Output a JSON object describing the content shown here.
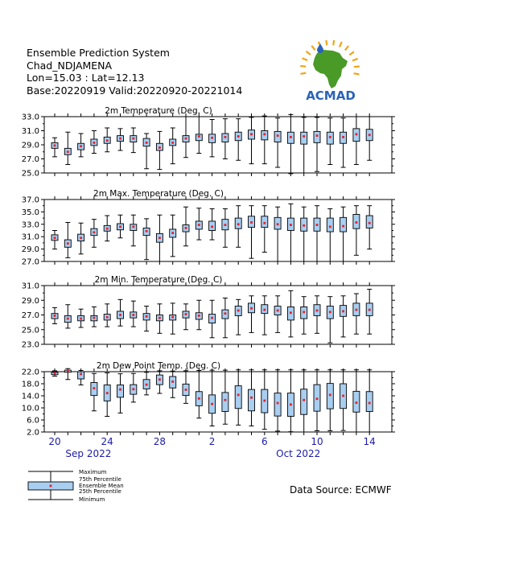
{
  "header": {
    "line1": "Ensemble Prediction System",
    "line2": "Chad_NDJAMENA",
    "line3": "Lon=15.03 : Lat=12.13",
    "line4": "Base:20220919 Valid:20220920-20221014"
  },
  "logo": {
    "text": "ACMAD",
    "colors": {
      "africa": "#4a9a28",
      "blue": "#2a63b8",
      "rays": "#f0a418"
    }
  },
  "source": "Data Source: ECMWF",
  "legend": {
    "maximum": "Maximum",
    "p75": "75th Percentile",
    "mean": "Ensemble Mean",
    "p25": "25th Percentile",
    "minimum": "Minimum"
  },
  "x_axis": {
    "tick_labels": [
      {
        "day": 1,
        "label": "20"
      },
      {
        "day": 5,
        "label": "24"
      },
      {
        "day": 9,
        "label": "28"
      },
      {
        "day": 13,
        "label": "2"
      },
      {
        "day": 17,
        "label": "6"
      },
      {
        "day": 21,
        "label": "10"
      },
      {
        "day": 25,
        "label": "14"
      }
    ],
    "months": [
      {
        "day": 4,
        "label": "Sep 2022"
      },
      {
        "day": 20,
        "label": "Oct 2022"
      }
    ]
  },
  "colors": {
    "box": "#a8cef0",
    "mean": "#e8202a",
    "axis_text": "#1c1caa"
  },
  "chart_data": [
    {
      "type": "boxplot",
      "title": "2m Temperature (Deg. C)",
      "ylim": [
        25,
        33
      ],
      "yticks": [
        25,
        27,
        29,
        31,
        33
      ],
      "min": [
        27.3,
        26.2,
        27.3,
        27.8,
        28.0,
        28.2,
        27.9,
        25.6,
        25.5,
        26.3,
        27.2,
        27.8,
        27.3,
        27.0,
        26.8,
        26.3,
        26.3,
        25.8,
        24.9,
        25.0,
        25.2,
        26.2,
        25.8,
        26.2,
        26.8
      ],
      "p25": [
        28.5,
        27.6,
        28.3,
        28.9,
        29.2,
        29.5,
        29.4,
        28.8,
        28.2,
        28.9,
        29.4,
        29.6,
        29.3,
        29.4,
        29.6,
        29.8,
        29.7,
        29.4,
        29.2,
        29.1,
        29.3,
        29.1,
        29.2,
        29.5,
        29.6
      ],
      "mean": [
        28.9,
        28.0,
        28.8,
        29.3,
        29.6,
        29.9,
        29.9,
        29.3,
        28.6,
        29.3,
        29.9,
        30.2,
        30.0,
        30.1,
        30.2,
        30.5,
        30.5,
        30.3,
        30.1,
        30.2,
        30.3,
        30.1,
        30.1,
        30.5,
        30.4
      ],
      "p75": [
        29.3,
        28.5,
        29.2,
        29.8,
        30.1,
        30.3,
        30.3,
        29.9,
        29.2,
        29.8,
        30.3,
        30.5,
        30.5,
        30.6,
        30.8,
        31.1,
        31.0,
        30.9,
        30.8,
        30.8,
        30.9,
        30.8,
        30.8,
        31.3,
        31.2
      ],
      "max": [
        30.0,
        30.8,
        30.6,
        31.0,
        31.4,
        31.3,
        31.4,
        30.6,
        30.9,
        31.4,
        33.0,
        33.0,
        32.6,
        32.7,
        32.7,
        32.9,
        33.1,
        32.8,
        33.3,
        32.9,
        32.9,
        32.8,
        32.8,
        33.0,
        33.0
      ]
    },
    {
      "type": "boxplot",
      "title": "2m Max. Temperature (Deg. C)",
      "ylim": [
        27,
        37
      ],
      "yticks": [
        27,
        29,
        31,
        33,
        35,
        37
      ],
      "min": [
        29.0,
        27.6,
        28.2,
        29.3,
        30.3,
        30.8,
        29.5,
        27.3,
        27.0,
        27.8,
        29.5,
        30.5,
        30.5,
        29.3,
        29.3,
        27.5,
        28.5,
        27.0,
        27.0,
        27.0,
        27.0,
        27.0,
        27.0,
        28.0,
        29.0
      ],
      "p25": [
        30.4,
        29.3,
        30.3,
        31.2,
        31.9,
        32.1,
        32.0,
        31.2,
        30.1,
        30.9,
        31.8,
        32.2,
        32.0,
        32.1,
        32.3,
        32.5,
        32.5,
        32.2,
        32.0,
        31.9,
        31.9,
        31.8,
        31.8,
        32.3,
        32.4
      ],
      "mean": [
        30.8,
        29.9,
        30.8,
        31.7,
        32.3,
        32.6,
        32.6,
        31.9,
        30.8,
        31.6,
        32.4,
        32.9,
        32.6,
        32.9,
        33.0,
        33.3,
        33.2,
        33.0,
        32.9,
        32.8,
        32.9,
        32.6,
        32.7,
        33.3,
        33.2
      ],
      "p75": [
        31.3,
        30.5,
        31.4,
        32.3,
        32.8,
        33.1,
        33.0,
        32.4,
        31.5,
        32.2,
        32.9,
        33.5,
        33.5,
        33.8,
        34.0,
        34.3,
        34.3,
        34.1,
        34.0,
        34.0,
        34.0,
        34.0,
        34.1,
        34.6,
        34.4
      ],
      "max": [
        32.0,
        33.3,
        33.2,
        33.8,
        34.4,
        34.5,
        34.5,
        33.9,
        34.5,
        34.5,
        35.8,
        35.6,
        35.5,
        35.5,
        36.0,
        36.0,
        36.0,
        35.8,
        36.3,
        35.8,
        36.0,
        35.5,
        35.8,
        36.0,
        36.0
      ]
    },
    {
      "type": "boxplot",
      "title": "2m Min. Temperature (Deg. C)",
      "ylim": [
        23,
        31
      ],
      "yticks": [
        23,
        25,
        27,
        29,
        31
      ],
      "min": [
        25.8,
        25.2,
        25.3,
        25.4,
        25.4,
        25.5,
        25.4,
        24.8,
        24.5,
        24.4,
        25.0,
        25.0,
        23.9,
        23.9,
        24.3,
        24.6,
        24.3,
        24.6,
        24.0,
        24.4,
        24.5,
        23.2,
        24.0,
        24.4,
        24.4
      ],
      "p25": [
        26.5,
        26.0,
        26.2,
        26.2,
        26.3,
        26.5,
        26.6,
        26.3,
        26.2,
        26.3,
        26.6,
        26.4,
        25.9,
        26.5,
        26.9,
        27.3,
        27.2,
        27.0,
        26.3,
        26.5,
        26.9,
        26.5,
        26.8,
        26.9,
        26.9
      ],
      "mean": [
        26.9,
        26.5,
        26.5,
        26.6,
        26.7,
        27.0,
        27.0,
        26.8,
        26.6,
        26.7,
        27.1,
        26.9,
        26.6,
        27.2,
        27.6,
        27.9,
        27.7,
        27.6,
        27.3,
        27.4,
        27.6,
        27.4,
        27.5,
        27.7,
        27.7
      ],
      "p75": [
        27.2,
        26.9,
        26.9,
        26.9,
        27.1,
        27.5,
        27.4,
        27.2,
        27.0,
        27.0,
        27.5,
        27.3,
        27.1,
        27.7,
        28.2,
        28.6,
        28.4,
        28.2,
        28.1,
        28.1,
        28.4,
        28.2,
        28.3,
        28.6,
        28.6
      ],
      "max": [
        28.0,
        28.4,
        27.8,
        28.1,
        28.5,
        29.1,
        28.9,
        28.2,
        28.5,
        28.6,
        28.5,
        29.0,
        29.0,
        29.3,
        29.1,
        29.6,
        29.6,
        29.6,
        30.3,
        29.5,
        29.6,
        29.5,
        29.6,
        29.9,
        30.5
      ]
    },
    {
      "type": "boxplot",
      "title": "2m Dew Point Temp. (Deg. C)",
      "ylim": [
        2,
        22
      ],
      "yticks": [
        2,
        6,
        10,
        14,
        18,
        22
      ],
      "min": [
        20.5,
        19.4,
        17.6,
        9.0,
        7.2,
        8.3,
        11.9,
        14.3,
        14.8,
        13.4,
        11.5,
        6.6,
        4.0,
        4.6,
        4.3,
        4.0,
        2.9,
        2.3,
        2.1,
        2.0,
        2.4,
        2.4,
        2.5,
        2.0,
        2.0
      ],
      "p25": [
        21.0,
        21.8,
        19.6,
        14.1,
        12.3,
        13.5,
        14.5,
        16.3,
        17.7,
        16.6,
        14.1,
        10.7,
        8.2,
        8.8,
        9.8,
        9.0,
        8.4,
        7.3,
        7.2,
        7.8,
        8.9,
        9.7,
        9.8,
        8.6,
        8.8
      ],
      "mean": [
        21.5,
        22.3,
        21.2,
        16.5,
        14.9,
        16.1,
        16.2,
        17.7,
        19.4,
        18.7,
        16.0,
        13.1,
        11.3,
        12.6,
        14.3,
        13.4,
        12.4,
        11.6,
        11.1,
        12.6,
        13.0,
        14.3,
        14.0,
        11.7,
        11.6
      ],
      "p75": [
        21.8,
        22.5,
        22.0,
        18.4,
        17.6,
        17.6,
        17.7,
        19.4,
        20.9,
        20.4,
        17.9,
        15.4,
        14.3,
        15.1,
        17.3,
        16.1,
        16.1,
        14.9,
        14.9,
        16.2,
        17.7,
        18.1,
        18.0,
        15.5,
        15.4
      ],
      "max": [
        22.3,
        23.0,
        22.4,
        21.4,
        21.6,
        21.3,
        21.4,
        21.8,
        22.3,
        22.2,
        22.3,
        22.4,
        22.5,
        22.5,
        22.6,
        22.6,
        22.6,
        22.6,
        22.6,
        22.6,
        22.6,
        22.6,
        22.6,
        22.6,
        22.6
      ]
    }
  ]
}
